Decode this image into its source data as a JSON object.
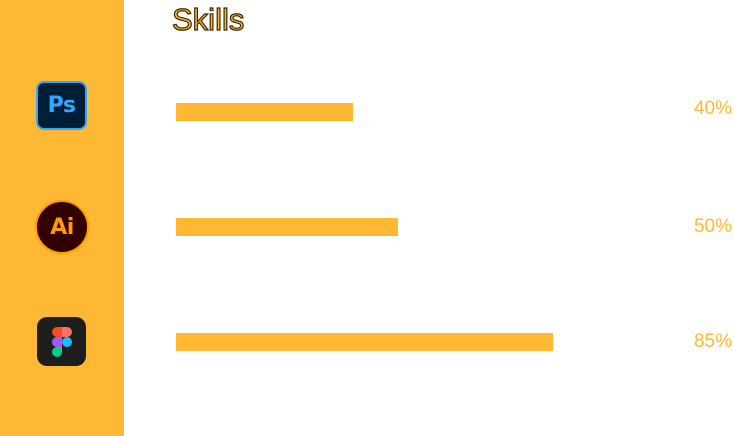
{
  "page": {
    "title": "Skills"
  },
  "theme": {
    "accent": "#FFB834",
    "sidebar_bg": "#FFB834"
  },
  "skills": [
    {
      "icon": "photoshop-icon",
      "icon_text": "Ps",
      "percent_label": "40%",
      "level": 0.4
    },
    {
      "icon": "illustrator-icon",
      "icon_text": "Ai",
      "percent_label": "50%",
      "level": 0.5
    },
    {
      "icon": "figma-icon",
      "percent_label": "85%",
      "level": 0.85
    }
  ]
}
